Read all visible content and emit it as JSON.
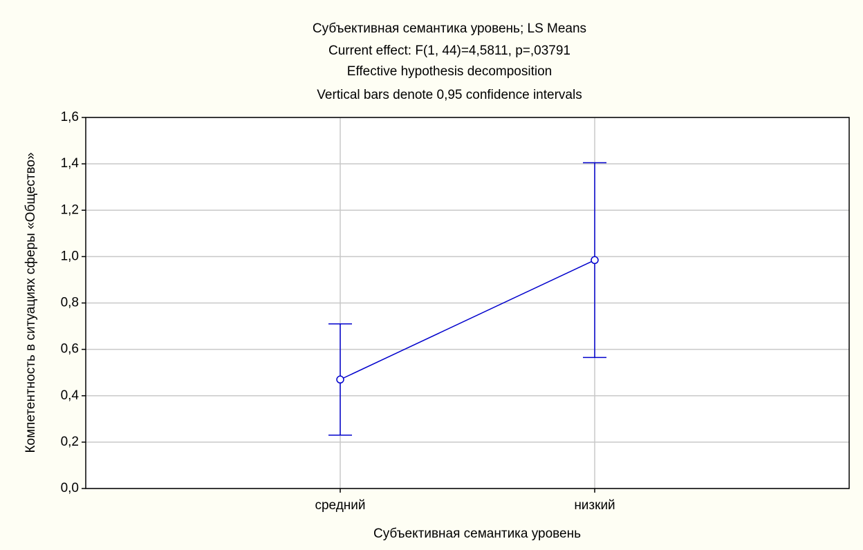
{
  "chart_data": {
    "type": "line",
    "title": "Субъективная семантика уровень; LS Means",
    "subtitle": [
      "Current effect: F(1, 44)=4,5811, p=,03791",
      "Effective hypothesis decomposition",
      "Vertical bars denote 0,95 confidence intervals"
    ],
    "x_label": "Субъективная семантика уровень",
    "y_label": "Компетентность в ситуациях сферы «Общество»",
    "categories": [
      "средний",
      "низкий"
    ],
    "values": [
      0.47,
      0.985
    ],
    "errors": [
      0.24,
      0.42
    ],
    "color": "#0000cc",
    "ylim": [
      0,
      1.6
    ],
    "yticks": [
      {
        "value": 0,
        "label": "0,0"
      },
      {
        "value": 0.2,
        "label": "0,2"
      },
      {
        "value": 0.4,
        "label": "0,4"
      },
      {
        "value": 0.6,
        "label": "0,6"
      },
      {
        "value": 0.8,
        "label": "0,8"
      },
      {
        "value": 1.0,
        "label": "1,0"
      },
      {
        "value": 1.2,
        "label": "1,2"
      },
      {
        "value": 1.4,
        "label": "1,4"
      },
      {
        "value": 1.6,
        "label": "1,6"
      }
    ],
    "grid": true
  }
}
